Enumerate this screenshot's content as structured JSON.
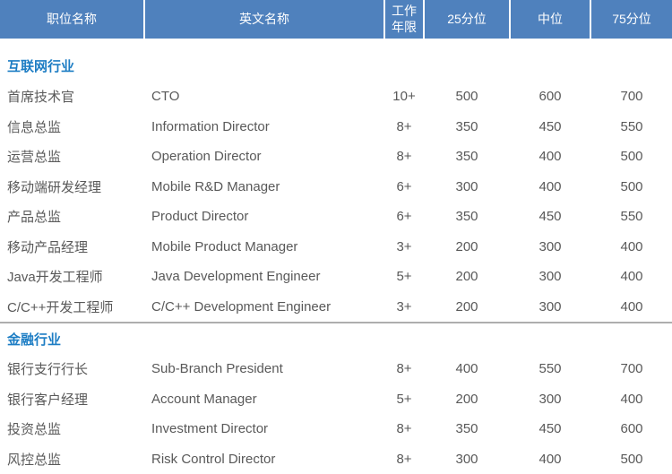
{
  "table": {
    "columns": [
      "职位名称",
      "英文名称",
      "工作年限",
      "25分位",
      "中位",
      "75分位"
    ],
    "sections": [
      {
        "name": "互联网行业",
        "rows": [
          [
            "首席技术官",
            "CTO",
            "10+",
            "500",
            "600",
            "700"
          ],
          [
            "信息总监",
            "Information Director",
            "8+",
            "350",
            "450",
            "550"
          ],
          [
            "运营总监",
            "Operation Director",
            "8+",
            "350",
            "400",
            "500"
          ],
          [
            "移动端研发经理",
            "Mobile R&D Manager",
            "6+",
            "300",
            "400",
            "500"
          ],
          [
            "产品总监",
            "Product Director",
            "6+",
            "350",
            "450",
            "550"
          ],
          [
            "移动产品经理",
            "Mobile Product Manager",
            "3+",
            "200",
            "300",
            "400"
          ],
          [
            "Java开发工程师",
            "Java Development Engineer",
            "5+",
            "200",
            "300",
            "400"
          ],
          [
            "C/C++开发工程师",
            "C/C++ Development Engineer",
            "3+",
            "200",
            "300",
            "400"
          ]
        ]
      },
      {
        "name": "金融行业",
        "rows": [
          [
            "银行支行行长",
            "Sub-Branch President",
            "8+",
            "400",
            "550",
            "700"
          ],
          [
            "银行客户经理",
            "Account Manager",
            "5+",
            "200",
            "300",
            "400"
          ],
          [
            "投资总监",
            "Investment Director",
            "8+",
            "350",
            "450",
            "600"
          ],
          [
            "风控总监",
            "Risk Control Director",
            "8+",
            "300",
            "400",
            "500"
          ]
        ]
      }
    ]
  },
  "colors": {
    "header_bg": "#4f81bd",
    "header_text": "#ffffff",
    "section_text": "#1d7dc4",
    "body_text": "#595959",
    "divider": "#aeaeae"
  }
}
